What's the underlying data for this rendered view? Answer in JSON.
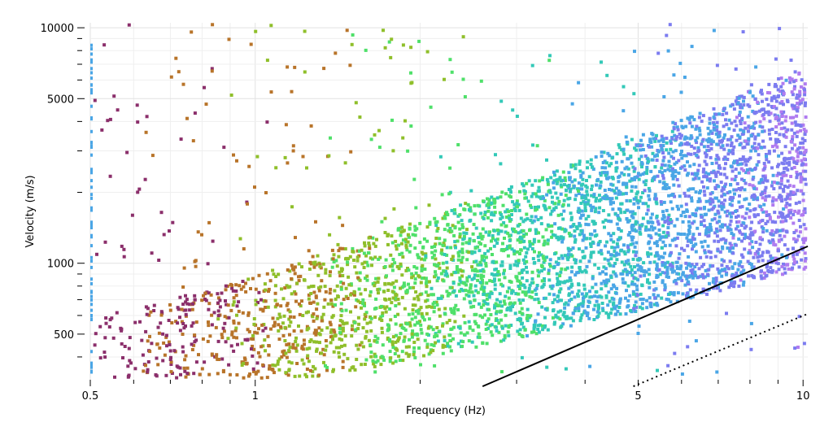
{
  "chart_data": {
    "type": "scatter",
    "title": "",
    "xlabel": "Frequency (Hz)",
    "ylabel": "Velocity (m/s)",
    "x_scale": "log",
    "y_scale": "log",
    "xlim": [
      0.5,
      10.2
    ],
    "ylim": [
      320,
      10500
    ],
    "x_tick_labels": [
      {
        "value": 0.5,
        "label": "0.5"
      },
      {
        "value": 1,
        "label": "1"
      },
      {
        "value": 5,
        "label": "5"
      },
      {
        "value": 10,
        "label": "10"
      }
    ],
    "y_tick_labels": [
      {
        "value": 500,
        "label": "500"
      },
      {
        "value": 1000,
        "label": "1000"
      },
      {
        "value": 5000,
        "label": "5000"
      },
      {
        "value": 10000,
        "label": "10000"
      }
    ],
    "grid": true,
    "legend": "none",
    "colormap": [
      "#8b2f6b",
      "#b8742a",
      "#8fbf2a",
      "#4fe06a",
      "#33c9b8",
      "#4aa6e6",
      "#7c7cf0",
      "#b07cf0"
    ],
    "lines": [
      {
        "style": "solid",
        "color": "#000000",
        "points": [
          [
            2.6,
            300
          ],
          [
            10.2,
            1180
          ]
        ]
      },
      {
        "style": "dotted",
        "color": "#000000",
        "points": [
          [
            4.9,
            300
          ],
          [
            10.2,
            610
          ]
        ]
      }
    ]
  }
}
